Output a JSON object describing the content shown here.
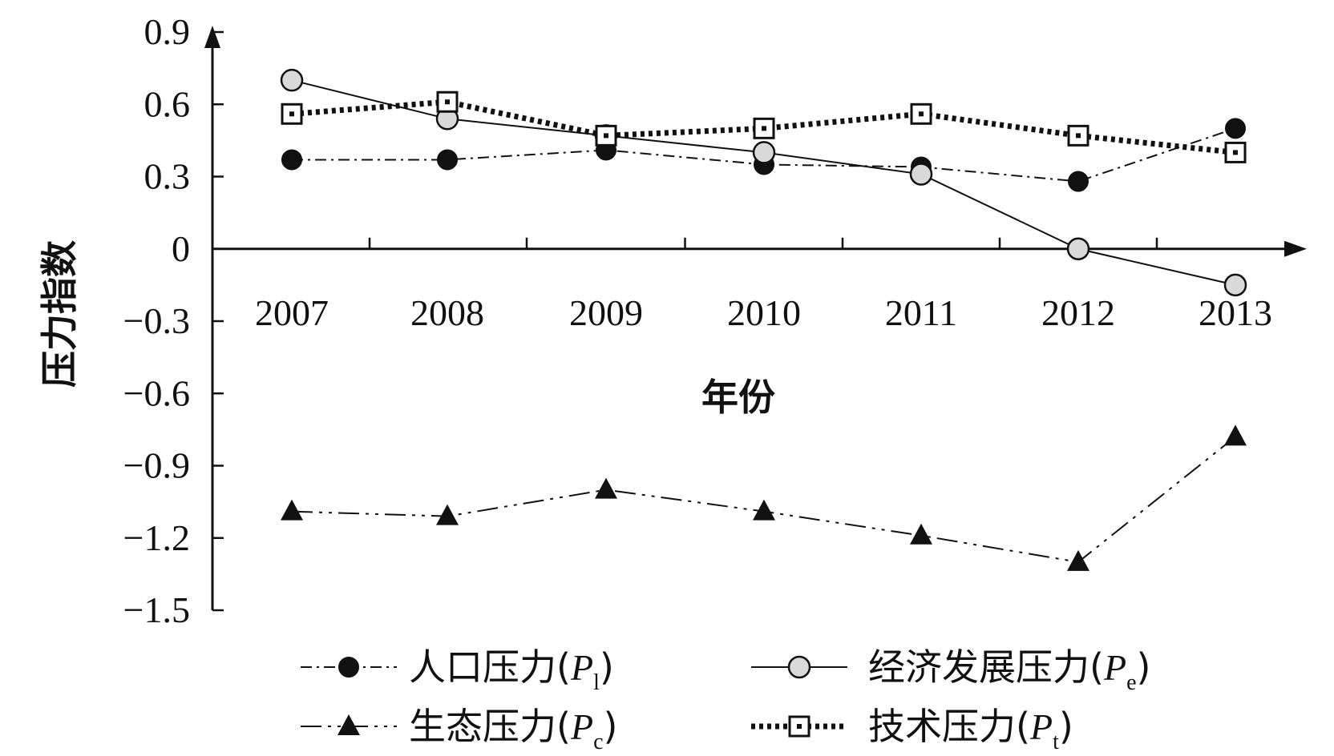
{
  "chart_data": {
    "type": "line",
    "title": "",
    "xlabel": "年份",
    "ylabel": "压力指数",
    "categories": [
      "2007",
      "2008",
      "2009",
      "2010",
      "2011",
      "2012",
      "2013"
    ],
    "ylim": [
      -1.5,
      0.9
    ],
    "yticks": [
      "0.9",
      "0.6",
      "0.3",
      "0",
      "−0.3",
      "−0.6",
      "−0.9",
      "−1.2",
      "−1.5"
    ],
    "ytick_values": [
      0.9,
      0.6,
      0.3,
      0,
      -0.3,
      -0.6,
      -0.9,
      -1.2,
      -1.5
    ],
    "grid": false,
    "legend_position": "bottom",
    "series": [
      {
        "name": "人口压力",
        "symbol": "P",
        "subscript": "l",
        "marker": "filled-circle",
        "line_style": "dash-dot",
        "values": [
          0.37,
          0.37,
          0.41,
          0.35,
          0.34,
          0.28,
          0.5
        ]
      },
      {
        "name": "经济发展压力",
        "symbol": "P",
        "subscript": "e",
        "marker": "open-circle",
        "line_style": "solid",
        "values": [
          0.7,
          0.54,
          0.47,
          0.4,
          0.31,
          0.0,
          -0.15
        ]
      },
      {
        "name": "生态压力",
        "symbol": "P",
        "subscript": "c",
        "marker": "filled-triangle",
        "line_style": "dash-dot-dot",
        "values": [
          -1.09,
          -1.11,
          -1.0,
          -1.09,
          -1.19,
          -1.3,
          -0.78
        ]
      },
      {
        "name": "技术压力",
        "symbol": "P",
        "subscript": "t",
        "marker": "open-square",
        "line_style": "dotted-thick",
        "values": [
          0.56,
          0.61,
          0.47,
          0.5,
          0.56,
          0.47,
          0.4
        ]
      }
    ]
  },
  "colors": {
    "ink": "#111111",
    "open_circle_fill": "#d9d9d9",
    "background": "#ffffff"
  }
}
